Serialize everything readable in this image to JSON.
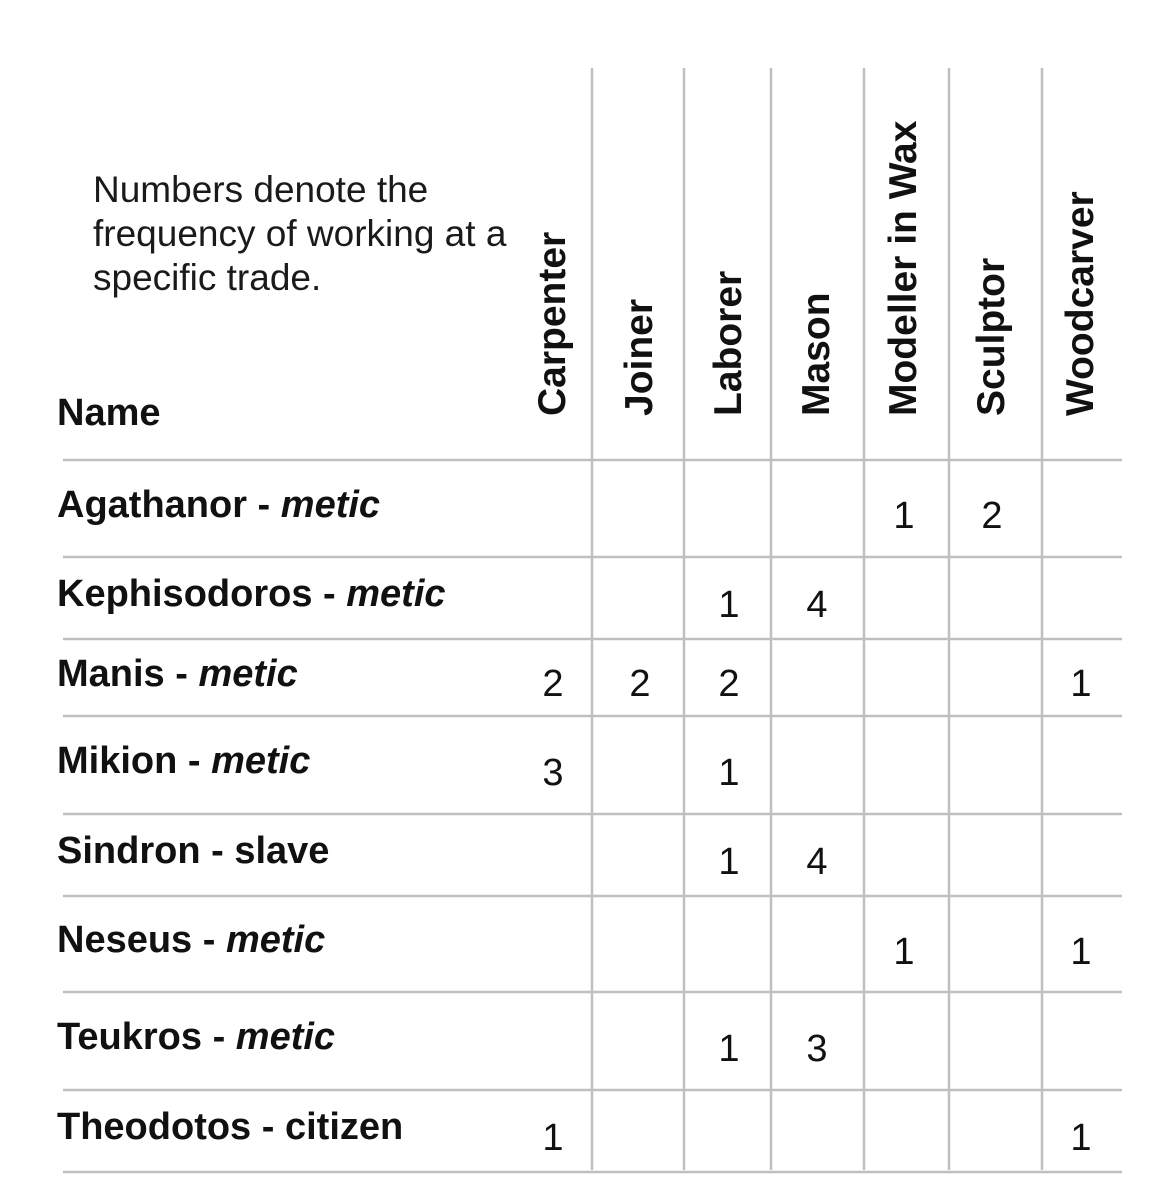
{
  "note": "Numbers denote the frequency of working at a specific trade.",
  "colors": {
    "grid_line": "#bfbfbf",
    "text": "#111111"
  },
  "chart_data": {
    "type": "table",
    "row_header": "Name",
    "columns": [
      "Carpenter",
      "Joiner",
      "Laborer",
      "Mason",
      "Modeller in Wax",
      "Sculptor",
      "Woodcarver"
    ],
    "rows": [
      {
        "name": "Agathanor",
        "status": "metic",
        "status_italic": true,
        "values": [
          null,
          null,
          null,
          null,
          1,
          2,
          null
        ]
      },
      {
        "name": "Kephisodoros",
        "status": "metic",
        "status_italic": true,
        "values": [
          null,
          null,
          1,
          4,
          null,
          null,
          null
        ]
      },
      {
        "name": "Manis",
        "status": "metic",
        "status_italic": true,
        "values": [
          2,
          2,
          2,
          null,
          null,
          null,
          1
        ]
      },
      {
        "name": "Mikion",
        "status": "metic",
        "status_italic": true,
        "values": [
          3,
          null,
          1,
          null,
          null,
          null,
          null
        ]
      },
      {
        "name": "Sindron",
        "status": "slave",
        "status_italic": false,
        "values": [
          null,
          null,
          1,
          4,
          null,
          null,
          null
        ]
      },
      {
        "name": "Neseus",
        "status": "metic",
        "status_italic": true,
        "values": [
          null,
          null,
          null,
          null,
          1,
          null,
          1
        ]
      },
      {
        "name": "Teukros",
        "status": "metic",
        "status_italic": true,
        "values": [
          null,
          null,
          1,
          3,
          null,
          null,
          null
        ]
      },
      {
        "name": "Theodotos",
        "status": "citizen",
        "status_italic": false,
        "values": [
          1,
          null,
          null,
          null,
          null,
          null,
          1
        ]
      }
    ]
  }
}
